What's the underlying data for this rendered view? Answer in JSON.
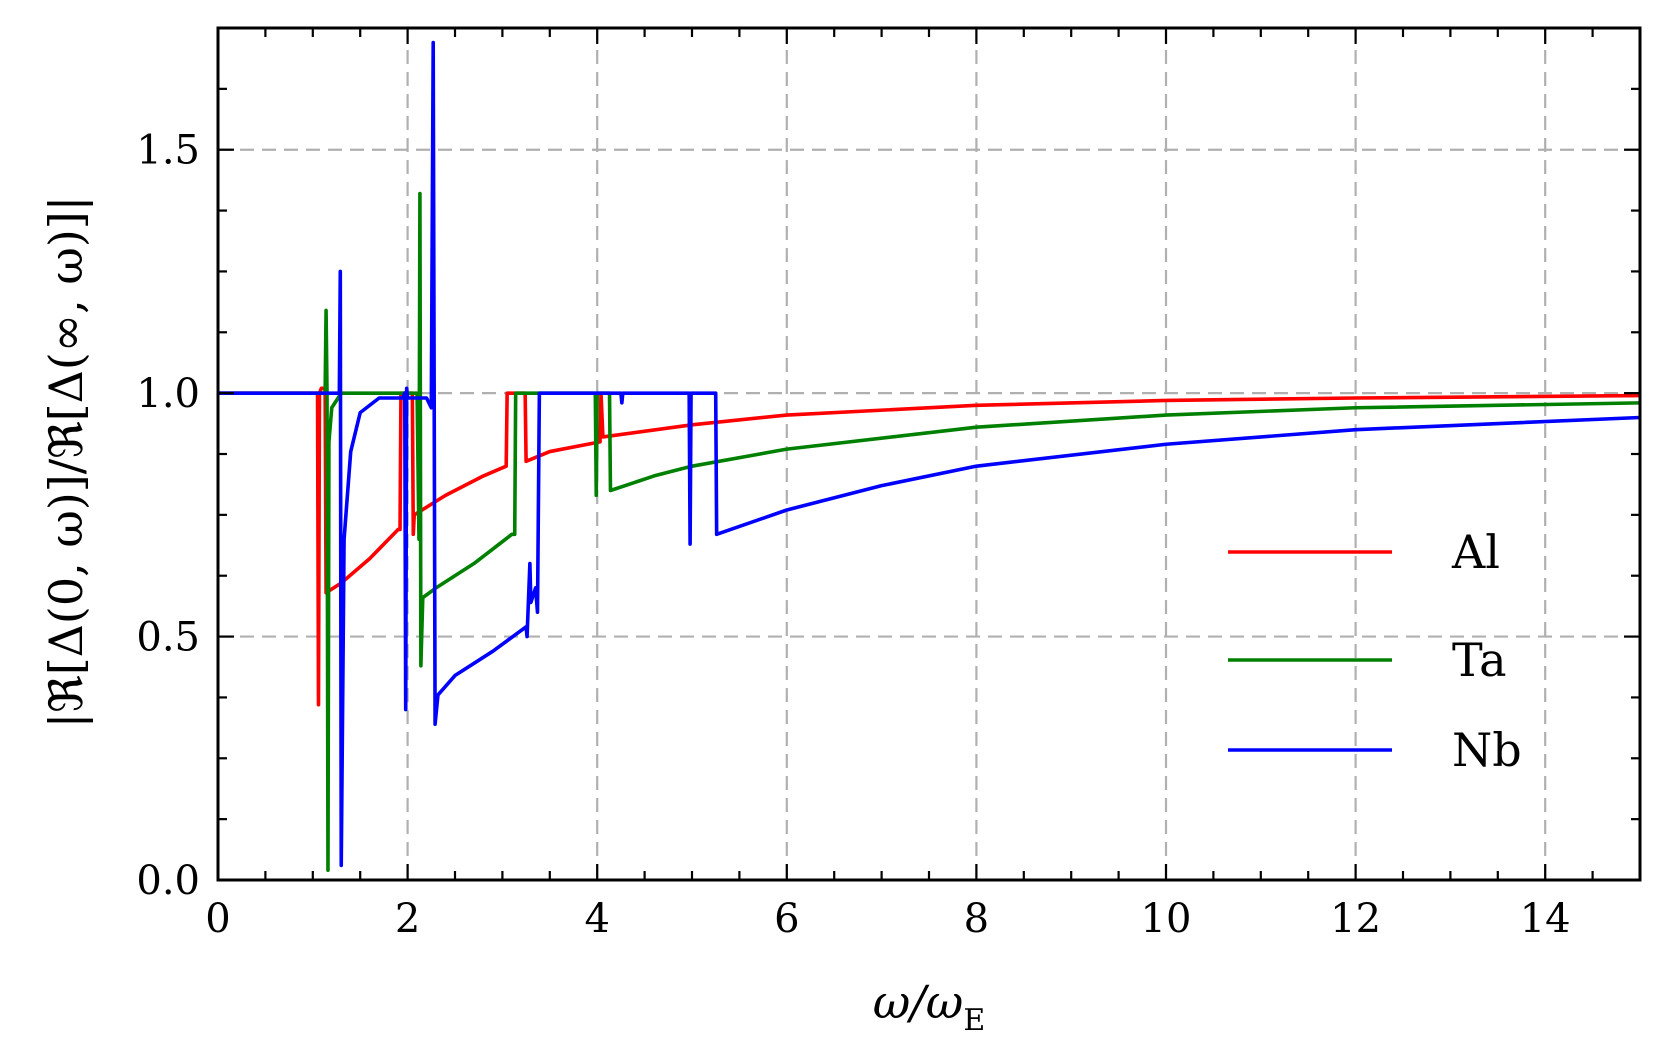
{
  "chart_data": {
    "type": "line",
    "xlabel": "ω/ω_E",
    "xlabel_main": "ω/ω",
    "xlabel_sub": "E",
    "ylabel": "|ℜ[Δ(0, ω)]/ℜ[Δ(∞, ω)]|",
    "xlim": [
      0,
      15
    ],
    "ylim": [
      0,
      1.75
    ],
    "xticks": [
      0,
      2,
      4,
      6,
      8,
      10,
      12,
      14
    ],
    "xtick_labels": [
      "0",
      "2",
      "4",
      "6",
      "8",
      "10",
      "12",
      "14"
    ],
    "yticks": [
      0.0,
      0.5,
      1.0,
      1.5
    ],
    "ytick_labels": [
      "0.0",
      "0.5",
      "1.0",
      "1.5"
    ],
    "grid": true,
    "legend_position": "right",
    "series": [
      {
        "name": "Al",
        "color": "#ff0000",
        "points": [
          [
            0,
            1.0
          ],
          [
            1.05,
            1.0
          ],
          [
            1.06,
            0.36
          ],
          [
            1.07,
            1.0
          ],
          [
            1.09,
            1.01
          ],
          [
            1.13,
            1.01
          ],
          [
            1.14,
            0.59
          ],
          [
            1.3,
            0.61
          ],
          [
            1.6,
            0.66
          ],
          [
            1.9,
            0.72
          ],
          [
            1.92,
            0.72
          ],
          [
            1.93,
            1.0
          ],
          [
            2.05,
            1.0
          ],
          [
            2.06,
            0.71
          ],
          [
            2.07,
            0.75
          ],
          [
            2.4,
            0.79
          ],
          [
            2.8,
            0.83
          ],
          [
            3.04,
            0.85
          ],
          [
            3.05,
            1.0
          ],
          [
            3.24,
            1.0
          ],
          [
            3.25,
            0.86
          ],
          [
            3.5,
            0.88
          ],
          [
            4.03,
            0.9
          ],
          [
            4.04,
            1.0
          ],
          [
            4.06,
            0.91
          ],
          [
            5,
            0.935
          ],
          [
            6,
            0.955
          ],
          [
            8,
            0.975
          ],
          [
            10,
            0.985
          ],
          [
            12,
            0.99
          ],
          [
            15,
            0.995
          ]
        ]
      },
      {
        "name": "Ta",
        "color": "#008000",
        "points": [
          [
            0,
            1.0
          ],
          [
            1.13,
            1.0
          ],
          [
            1.14,
            1.17
          ],
          [
            1.15,
            1.0
          ],
          [
            1.16,
            0.02
          ],
          [
            1.17,
            0.9
          ],
          [
            1.2,
            0.97
          ],
          [
            1.3,
            1.0
          ],
          [
            2.1,
            1.0
          ],
          [
            2.12,
            0.7
          ],
          [
            2.13,
            1.41
          ],
          [
            2.14,
            0.44
          ],
          [
            2.16,
            0.58
          ],
          [
            2.3,
            0.6
          ],
          [
            2.7,
            0.65
          ],
          [
            3.1,
            0.71
          ],
          [
            3.13,
            0.71
          ],
          [
            3.14,
            1.0
          ],
          [
            3.98,
            1.0
          ],
          [
            3.99,
            0.79
          ],
          [
            4.0,
            1.0
          ],
          [
            4.13,
            1.0
          ],
          [
            4.14,
            0.8
          ],
          [
            4.6,
            0.83
          ],
          [
            5,
            0.85
          ],
          [
            6,
            0.885
          ],
          [
            8,
            0.93
          ],
          [
            10,
            0.955
          ],
          [
            12,
            0.97
          ],
          [
            15,
            0.98
          ]
        ]
      },
      {
        "name": "Nb",
        "color": "#0000ff",
        "points": [
          [
            0,
            1.0
          ],
          [
            1.28,
            1.0
          ],
          [
            1.29,
            1.25
          ],
          [
            1.3,
            0.03
          ],
          [
            1.33,
            0.7
          ],
          [
            1.4,
            0.88
          ],
          [
            1.5,
            0.96
          ],
          [
            1.7,
            0.99
          ],
          [
            1.95,
            0.99
          ],
          [
            1.97,
            1.0
          ],
          [
            1.98,
            0.35
          ],
          [
            1.99,
            1.01
          ],
          [
            2.0,
            0.99
          ],
          [
            2.2,
            0.99
          ],
          [
            2.25,
            0.97
          ],
          [
            2.27,
            1.72
          ],
          [
            2.29,
            0.32
          ],
          [
            2.32,
            0.38
          ],
          [
            2.5,
            0.42
          ],
          [
            2.9,
            0.47
          ],
          [
            3.25,
            0.52
          ],
          [
            3.26,
            0.5
          ],
          [
            3.29,
            0.65
          ],
          [
            3.3,
            0.57
          ],
          [
            3.35,
            0.6
          ],
          [
            3.37,
            0.55
          ],
          [
            3.39,
            1.0
          ],
          [
            4.25,
            1.0
          ],
          [
            4.26,
            0.98
          ],
          [
            4.27,
            1.0
          ],
          [
            4.97,
            1.0
          ],
          [
            4.98,
            0.69
          ],
          [
            4.99,
            1.0
          ],
          [
            5.25,
            1.0
          ],
          [
            5.26,
            0.71
          ],
          [
            6,
            0.76
          ],
          [
            7,
            0.81
          ],
          [
            8,
            0.85
          ],
          [
            10,
            0.895
          ],
          [
            12,
            0.925
          ],
          [
            15,
            0.95
          ]
        ]
      }
    ]
  }
}
